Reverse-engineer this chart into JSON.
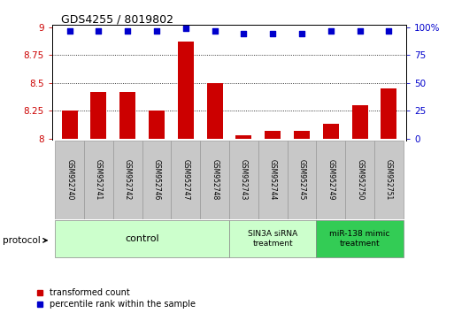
{
  "title": "GDS4255 / 8019802",
  "samples": [
    "GSM952740",
    "GSM952741",
    "GSM952742",
    "GSM952746",
    "GSM952747",
    "GSM952748",
    "GSM952743",
    "GSM952744",
    "GSM952745",
    "GSM952749",
    "GSM952750",
    "GSM952751"
  ],
  "bar_values": [
    8.25,
    8.42,
    8.42,
    8.25,
    8.87,
    8.5,
    8.03,
    8.07,
    8.07,
    8.13,
    8.3,
    8.45
  ],
  "percentile_values": [
    97,
    97,
    97,
    97,
    99,
    97,
    94,
    94,
    94,
    97,
    97,
    97
  ],
  "bar_bottom": 8.0,
  "ylim_left": [
    7.98,
    9.02
  ],
  "ylim_right": [
    -2.04,
    102
  ],
  "yticks_left": [
    8.0,
    8.25,
    8.5,
    8.75,
    9.0
  ],
  "ytick_labels_left": [
    "8",
    "8.25",
    "8.5",
    "8.75",
    "9"
  ],
  "yticks_right": [
    0,
    25,
    50,
    75,
    100
  ],
  "ytick_labels_right": [
    "0",
    "25",
    "50",
    "75",
    "100%"
  ],
  "bar_color": "#cc0000",
  "dot_color": "#0000cc",
  "control_group": [
    0,
    1,
    2,
    3,
    4,
    5
  ],
  "sin3a_group": [
    6,
    7,
    8
  ],
  "mir138_group": [
    9,
    10,
    11
  ],
  "protocol_label": "protocol",
  "control_label": "control",
  "sin3a_label": "SIN3A siRNA\ntreatment",
  "mir138_label": "miR-138 mimic\ntreatment",
  "legend_bar_label": "transformed count",
  "legend_dot_label": "percentile rank within the sample",
  "sample_box_color": "#c8c8c8",
  "control_bg": "#ccffcc",
  "sin3a_bg": "#ccffcc",
  "mir138_bg": "#33cc55",
  "group_box_border": "#888888",
  "dotted_lines": [
    8.25,
    8.5,
    8.75
  ]
}
